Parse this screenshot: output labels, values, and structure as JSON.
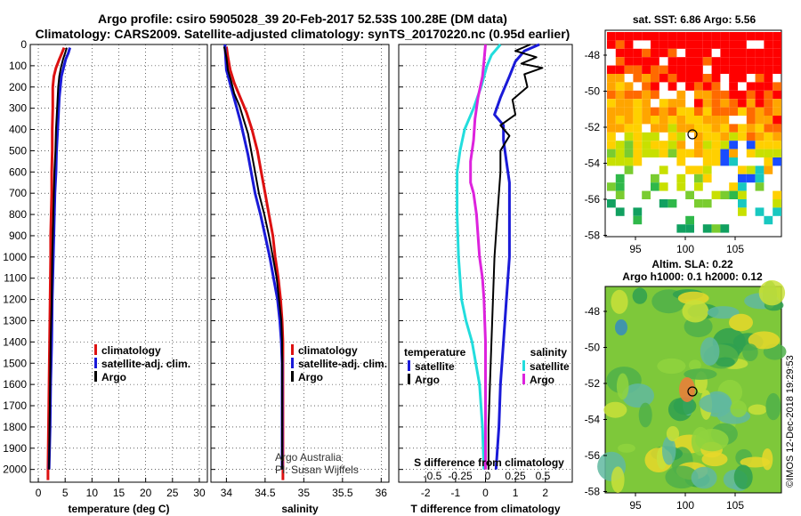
{
  "header": {
    "title_line1": "Argo profile: csiro 5905028_39 20-Feb-2017 52.53S 100.28E (DM data)",
    "title_line2": "Climatology: CARS2009. Satellite-adjusted climatology: synTS_20170220.nc (0.95d earlier)"
  },
  "colors": {
    "climatology": "#dd1111",
    "satellite": "#1a1ad8",
    "argo": "#000000",
    "sal_satellite": "#22dddd",
    "sal_argo": "#dd22dd"
  },
  "depth_axis": {
    "ticks": [
      0,
      100,
      200,
      300,
      400,
      500,
      600,
      700,
      800,
      900,
      1000,
      1100,
      1200,
      1300,
      1400,
      1500,
      1600,
      1700,
      1800,
      1900,
      2000
    ],
    "range": [
      0,
      2060
    ]
  },
  "chart_data": [
    {
      "id": "temperature",
      "type": "line",
      "xlabel": "temperature (deg C)",
      "xlim": [
        -1.5,
        31.5
      ],
      "xticks": [
        0,
        5,
        10,
        15,
        20,
        25,
        30
      ],
      "legend": [
        "climatology",
        "satellite-adj. clim.",
        "Argo"
      ],
      "series": [
        {
          "name": "climatology",
          "color_key": "climatology",
          "points": [
            [
              4.8,
              15
            ],
            [
              4.4,
              40
            ],
            [
              3.9,
              70
            ],
            [
              3.3,
              110
            ],
            [
              2.9,
              150
            ],
            [
              2.7,
              200
            ],
            [
              2.7,
              250
            ],
            [
              2.7,
              300
            ],
            [
              2.6,
              400
            ],
            [
              2.6,
              500
            ],
            [
              2.5,
              600
            ],
            [
              2.5,
              700
            ],
            [
              2.4,
              800
            ],
            [
              2.3,
              900
            ],
            [
              2.3,
              1000
            ],
            [
              2.2,
              1200
            ],
            [
              2.1,
              1400
            ],
            [
              2.0,
              1600
            ],
            [
              1.9,
              1800
            ],
            [
              1.8,
              2000
            ],
            [
              1.8,
              2050
            ]
          ]
        },
        {
          "name": "satellite-adj. clim.",
          "color_key": "satellite",
          "points": [
            [
              5.9,
              15
            ],
            [
              5.6,
              40
            ],
            [
              5.1,
              70
            ],
            [
              4.7,
              110
            ],
            [
              4.3,
              150
            ],
            [
              4.1,
              200
            ],
            [
              3.9,
              250
            ],
            [
              3.8,
              300
            ],
            [
              3.6,
              400
            ],
            [
              3.4,
              500
            ],
            [
              3.3,
              600
            ],
            [
              3.1,
              700
            ],
            [
              3.0,
              800
            ],
            [
              2.9,
              900
            ],
            [
              2.8,
              1000
            ],
            [
              2.6,
              1200
            ],
            [
              2.5,
              1400
            ],
            [
              2.3,
              1600
            ],
            [
              2.2,
              1800
            ],
            [
              2.1,
              1900
            ],
            [
              2.0,
              2000
            ]
          ]
        },
        {
          "name": "Argo",
          "color_key": "argo",
          "points": [
            [
              5.3,
              15
            ],
            [
              5.0,
              40
            ],
            [
              4.6,
              70
            ],
            [
              4.2,
              110
            ],
            [
              3.9,
              150
            ],
            [
              3.7,
              200
            ],
            [
              3.6,
              250
            ],
            [
              3.5,
              300
            ],
            [
              3.3,
              400
            ],
            [
              3.2,
              500
            ],
            [
              3.0,
              600
            ],
            [
              2.9,
              700
            ],
            [
              2.8,
              800
            ],
            [
              2.7,
              900
            ],
            [
              2.6,
              1000
            ],
            [
              2.5,
              1200
            ],
            [
              2.3,
              1400
            ],
            [
              2.2,
              1600
            ],
            [
              2.1,
              1800
            ],
            [
              2.0,
              2000
            ]
          ]
        }
      ]
    },
    {
      "id": "salinity",
      "type": "line",
      "xlabel": "salinity",
      "xlim": [
        33.8,
        36.1
      ],
      "xticks": [
        34,
        34.5,
        35,
        35.5,
        36
      ],
      "legend": [
        "climatology",
        "satellite-adj. clim.",
        "Argo"
      ],
      "annotation": [
        "Argo Australia",
        "PI: Susan Wijffels"
      ],
      "series": [
        {
          "name": "climatology",
          "color_key": "climatology",
          "points": [
            [
              34.0,
              10
            ],
            [
              34.02,
              60
            ],
            [
              34.05,
              120
            ],
            [
              34.1,
              180
            ],
            [
              34.18,
              250
            ],
            [
              34.26,
              320
            ],
            [
              34.33,
              400
            ],
            [
              34.4,
              500
            ],
            [
              34.45,
              600
            ],
            [
              34.5,
              700
            ],
            [
              34.55,
              800
            ],
            [
              34.6,
              900
            ],
            [
              34.63,
              1000
            ],
            [
              34.67,
              1100
            ],
            [
              34.7,
              1200
            ],
            [
              34.72,
              1300
            ],
            [
              34.73,
              1400
            ],
            [
              34.73,
              1500
            ],
            [
              34.73,
              1600
            ],
            [
              34.73,
              1700
            ],
            [
              34.73,
              1800
            ],
            [
              34.73,
              2050
            ]
          ]
        },
        {
          "name": "satellite-adj. clim.",
          "color_key": "satellite",
          "points": [
            [
              33.98,
              0
            ],
            [
              33.99,
              60
            ],
            [
              34.0,
              120
            ],
            [
              34.06,
              200
            ],
            [
              34.12,
              280
            ],
            [
              34.18,
              360
            ],
            [
              34.23,
              440
            ],
            [
              34.28,
              520
            ],
            [
              34.32,
              600
            ],
            [
              34.37,
              700
            ],
            [
              34.44,
              800
            ],
            [
              34.5,
              900
            ],
            [
              34.56,
              1000
            ],
            [
              34.61,
              1100
            ],
            [
              34.66,
              1200
            ],
            [
              34.69,
              1300
            ],
            [
              34.71,
              1400
            ],
            [
              34.72,
              1500
            ],
            [
              34.72,
              1600
            ],
            [
              34.72,
              1700
            ],
            [
              34.72,
              1800
            ],
            [
              34.72,
              2000
            ]
          ]
        },
        {
          "name": "Argo",
          "color_key": "argo",
          "points": [
            [
              33.97,
              10
            ],
            [
              34.0,
              60
            ],
            [
              34.02,
              120
            ],
            [
              34.06,
              170
            ],
            [
              34.1,
              230
            ],
            [
              34.17,
              290
            ],
            [
              34.22,
              350
            ],
            [
              34.28,
              420
            ],
            [
              34.32,
              500
            ],
            [
              34.37,
              600
            ],
            [
              34.42,
              700
            ],
            [
              34.49,
              800
            ],
            [
              34.55,
              900
            ],
            [
              34.6,
              1000
            ],
            [
              34.65,
              1100
            ],
            [
              34.68,
              1200
            ],
            [
              34.71,
              1300
            ],
            [
              34.72,
              1400
            ],
            [
              34.72,
              1500
            ],
            [
              34.72,
              1600
            ],
            [
              34.72,
              1700
            ],
            [
              34.72,
              1800
            ],
            [
              34.72,
              1900
            ],
            [
              34.72,
              2000
            ]
          ]
        }
      ]
    },
    {
      "id": "difference",
      "type": "line",
      "xlabel": "T difference from climatology",
      "xlabel_top": "S difference from climatology",
      "xlim": [
        -2.9,
        2.9
      ],
      "xticks": [
        -2,
        -1,
        0,
        1,
        2
      ],
      "top_ticks": [
        "-0.5",
        "-0.25",
        "0",
        "0.25",
        "0.5"
      ],
      "legend_left_title": "temperature",
      "legend_left": [
        "satellite",
        "Argo"
      ],
      "legend_right_title": "salinity",
      "legend_right": [
        "satellite",
        "Argo"
      ],
      "series": [
        {
          "name": "T satellite",
          "color_key": "satellite",
          "points": [
            [
              1.8,
              0
            ],
            [
              1.3,
              30
            ],
            [
              1.0,
              80
            ],
            [
              0.8,
              150
            ],
            [
              0.5,
              250
            ],
            [
              0.3,
              330
            ],
            [
              0.6,
              380
            ],
            [
              0.6,
              450
            ],
            [
              0.7,
              550
            ],
            [
              0.8,
              650
            ],
            [
              0.8,
              800
            ],
            [
              0.8,
              1000
            ],
            [
              0.7,
              1200
            ],
            [
              0.6,
              1400
            ],
            [
              0.5,
              1600
            ],
            [
              0.45,
              1800
            ],
            [
              0.35,
              2000
            ]
          ]
        },
        {
          "name": "T Argo",
          "color_key": "argo",
          "points": [
            [
              1.5,
              0
            ],
            [
              1.0,
              30
            ],
            [
              1.7,
              60
            ],
            [
              1.2,
              90
            ],
            [
              1.9,
              110
            ],
            [
              1.3,
              140
            ],
            [
              1.4,
              200
            ],
            [
              0.9,
              260
            ],
            [
              1.0,
              330
            ],
            [
              0.5,
              380
            ],
            [
              0.8,
              430
            ],
            [
              0.5,
              500
            ],
            [
              0.5,
              600
            ],
            [
              0.45,
              700
            ],
            [
              0.4,
              800
            ],
            [
              0.3,
              1000
            ],
            [
              0.25,
              1200
            ],
            [
              0.2,
              1400
            ],
            [
              0.15,
              1600
            ],
            [
              0.1,
              1800
            ],
            [
              0.1,
              2000
            ]
          ]
        },
        {
          "name": "S satellite",
          "color_key": "sal_satellite",
          "points": [
            [
              0.5,
              0
            ],
            [
              0.2,
              50
            ],
            [
              0.05,
              100
            ],
            [
              -0.15,
              200
            ],
            [
              -0.4,
              300
            ],
            [
              -0.7,
              400
            ],
            [
              -0.85,
              500
            ],
            [
              -0.95,
              600
            ],
            [
              -0.95,
              700
            ],
            [
              -0.95,
              800
            ],
            [
              -0.9,
              1000
            ],
            [
              -0.8,
              1200
            ],
            [
              -0.65,
              1300
            ],
            [
              -0.45,
              1400
            ],
            [
              -0.2,
              1600
            ],
            [
              -0.1,
              1800
            ],
            [
              -0.05,
              2000
            ]
          ]
        },
        {
          "name": "S Argo",
          "color_key": "sal_argo",
          "points": [
            [
              0.0,
              0
            ],
            [
              -0.05,
              80
            ],
            [
              -0.1,
              150
            ],
            [
              -0.25,
              250
            ],
            [
              -0.35,
              350
            ],
            [
              -0.4,
              450
            ],
            [
              -0.5,
              550
            ],
            [
              -0.5,
              650
            ],
            [
              -0.4,
              700
            ],
            [
              -0.3,
              800
            ],
            [
              -0.25,
              900
            ],
            [
              -0.2,
              1000
            ],
            [
              -0.1,
              1100
            ],
            [
              -0.05,
              1200
            ],
            [
              0.0,
              1400
            ],
            [
              0.0,
              1600
            ],
            [
              0.0,
              1800
            ],
            [
              0.0,
              2000
            ]
          ]
        }
      ]
    }
  ],
  "maps": {
    "sst": {
      "title": "sat. SST: 6.86 Argo: 5.56",
      "lat_ticks": [
        "-48",
        "-50",
        "-52",
        "-54",
        "-56",
        "-58"
      ],
      "lon_ticks": [
        "95",
        "100",
        "105"
      ]
    },
    "sla": {
      "title_line1": "Altim. SLA: 0.22",
      "title_line2": "Argo h1000: 0.1 h2000: 0.12",
      "lat_ticks": [
        "-48",
        "-50",
        "-52",
        "-54",
        "-56",
        "-58"
      ],
      "lon_ticks": [
        "95",
        "100",
        "105"
      ],
      "credit": "©IMOS 12-Dec-2018 19:29:53"
    }
  }
}
